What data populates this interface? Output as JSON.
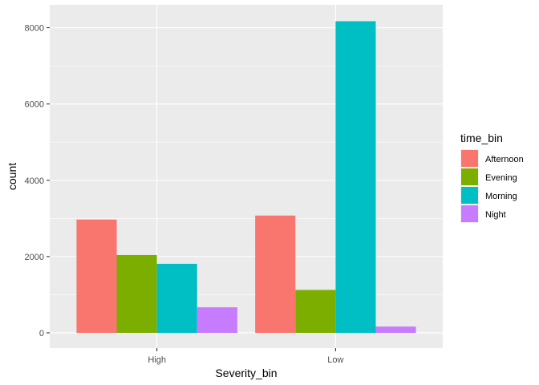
{
  "chart_data": {
    "type": "bar",
    "categories": [
      "High",
      "Low"
    ],
    "series": [
      {
        "name": "Afternoon",
        "values": [
          2970,
          3075
        ],
        "color": "#F8766D"
      },
      {
        "name": "Evening",
        "values": [
          2040,
          1125
        ],
        "color": "#7CAE00"
      },
      {
        "name": "Morning",
        "values": [
          1810,
          8170
        ],
        "color": "#00BFC4"
      },
      {
        "name": "Night",
        "values": [
          670,
          165
        ],
        "color": "#C77CFF"
      }
    ],
    "title": "",
    "xlabel": "Severity_bin",
    "ylabel": "count",
    "ylim": [
      -400,
      8600
    ],
    "yticks": [
      0,
      2000,
      4000,
      6000,
      8000
    ],
    "ytick_labels": [
      "0",
      "2000",
      "4000",
      "6000",
      "8000"
    ],
    "legend_title": "time_bin",
    "legend_position": "right",
    "grid": true,
    "panel_background": "#EBEBEB",
    "grid_color": "#FFFFFF"
  }
}
